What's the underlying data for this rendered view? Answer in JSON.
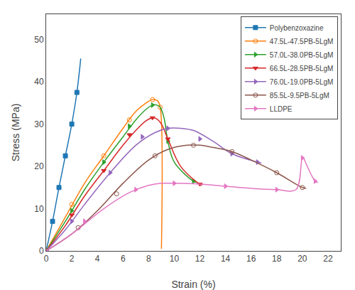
{
  "chart_data": {
    "type": "line",
    "xlabel": "Strain (%)",
    "ylabel": "Stress (MPa)",
    "xlim": [
      0,
      23
    ],
    "ylim": [
      0,
      56
    ],
    "xticks": [
      0,
      2,
      4,
      6,
      8,
      10,
      12,
      14,
      16,
      18,
      20,
      22
    ],
    "yticks": [
      0,
      10,
      20,
      30,
      40,
      50
    ],
    "grid": false,
    "legend": "upper right",
    "series": [
      {
        "name": "Polybenzoxazine",
        "marker": "square",
        "line_style": "solid",
        "x": [
          0,
          0.5,
          1.0,
          1.5,
          2.0,
          2.4,
          2.7
        ],
        "values": [
          0,
          7.0,
          15.0,
          22.5,
          30.0,
          37.5,
          45.5
        ],
        "marker_x": [
          0,
          0.5,
          1.0,
          1.5,
          2.0,
          2.4
        ],
        "marker_values": [
          0,
          7.0,
          15.0,
          22.5,
          30.0,
          37.5
        ]
      },
      {
        "name": "47.5L-47.5PB-5LgM",
        "marker": "circle-open",
        "line_style": "solid",
        "x": [
          0,
          1.5,
          3.0,
          4.5,
          6.0,
          7.0,
          7.8,
          8.3,
          8.7,
          8.9,
          9.0
        ],
        "values": [
          0,
          8.0,
          16.0,
          22.5,
          29.0,
          33.0,
          35.0,
          35.8,
          35.5,
          34.0,
          0.5
        ],
        "marker_x": [
          0,
          2.0,
          4.5,
          6.5,
          8.3,
          8.9
        ],
        "marker_values": [
          0,
          11.0,
          22.5,
          31.0,
          35.8,
          34.0
        ]
      },
      {
        "name": "57.0L-38.0PB-5LgM",
        "marker": "triangle-right",
        "line_style": "solid",
        "x": [
          0,
          1.5,
          3.0,
          4.5,
          6.0,
          7.0,
          7.8,
          8.3,
          8.65,
          8.9,
          9.2,
          9.5,
          10.0,
          11.5,
          11.8
        ],
        "values": [
          0,
          7.0,
          14.5,
          21.0,
          27.0,
          31.0,
          33.5,
          34.5,
          34.5,
          34.0,
          31.5,
          26.0,
          21.0,
          16.5,
          16.2
        ],
        "marker_x": [
          0,
          2.0,
          4.5,
          6.5,
          8.3,
          9.5,
          11.5
        ],
        "marker_values": [
          0,
          9.5,
          21.0,
          29.5,
          34.5,
          26.0,
          16.5
        ]
      },
      {
        "name": "66.5L-28.5PB-5LgM",
        "marker": "triangle-down",
        "line_style": "solid",
        "x": [
          0,
          1.5,
          3.0,
          4.5,
          6.0,
          7.0,
          7.8,
          8.3,
          8.6,
          9.0,
          9.5,
          10.5,
          12.0,
          12.2
        ],
        "values": [
          0,
          6.0,
          13.0,
          19.0,
          25.0,
          28.5,
          30.8,
          31.5,
          31.3,
          30.0,
          26.5,
          20.0,
          15.8,
          15.6
        ],
        "marker_x": [
          0,
          2.0,
          4.5,
          6.5,
          8.3,
          9.5,
          12.0
        ],
        "marker_values": [
          0,
          8.5,
          19.0,
          27.5,
          31.5,
          26.5,
          15.8
        ]
      },
      {
        "name": "76.0L-19.0PB-5LgM",
        "marker": "triangle-right",
        "line_style": "solid",
        "x": [
          0,
          1.5,
          3.0,
          5.0,
          7.0,
          8.5,
          9.5,
          10.5,
          11.5,
          13.0,
          14.5,
          16.5,
          16.8
        ],
        "values": [
          0,
          5.0,
          11.0,
          18.5,
          25.0,
          28.0,
          29.0,
          29.0,
          28.5,
          26.0,
          23.0,
          21.0,
          20.8
        ],
        "marker_x": [
          0,
          2.0,
          5.0,
          7.5,
          9.5,
          12.0,
          14.5,
          16.5
        ],
        "marker_values": [
          0,
          7.0,
          18.5,
          27.0,
          29.0,
          26.5,
          23.0,
          21.0
        ]
      },
      {
        "name": "85.5L-9.5PB-5LgM",
        "marker": "circle-open",
        "line_style": "solid",
        "x": [
          0,
          2.0,
          4.0,
          6.0,
          8.0,
          9.5,
          11.0,
          12.0,
          13.0,
          14.5,
          16.0,
          18.0,
          20.0,
          20.3
        ],
        "values": [
          0,
          4.0,
          9.5,
          16.0,
          21.5,
          24.0,
          25.0,
          25.0,
          24.5,
          23.5,
          21.5,
          18.5,
          15.0,
          14.8
        ],
        "marker_x": [
          0,
          2.5,
          5.5,
          8.5,
          11.5,
          14.5,
          18.0,
          20.0
        ],
        "marker_values": [
          0,
          5.5,
          13.5,
          22.5,
          25.0,
          23.5,
          18.5,
          15.0
        ]
      },
      {
        "name": "LLDPE",
        "marker": "triangle-right",
        "line_style": "solid",
        "x": [
          0,
          2.0,
          4.5,
          6.5,
          8.0,
          9.0,
          10.0,
          12.0,
          14.0,
          16.0,
          18.0,
          19.5,
          20.0,
          20.1,
          null,
          20.1,
          21.0,
          21.2
        ],
        "values": [
          0,
          4.0,
          10.0,
          13.8,
          15.5,
          16.0,
          16.0,
          15.8,
          15.3,
          14.8,
          14.5,
          14.5,
          22.0,
          22.0,
          null,
          22.0,
          16.5,
          16.2
        ],
        "marker_x": [
          0,
          3.0,
          7.0,
          10.0,
          14.0,
          18.0,
          20.0,
          21.0
        ],
        "marker_values": [
          0,
          7.0,
          14.5,
          16.0,
          15.3,
          14.5,
          22.0,
          16.5
        ]
      }
    ]
  }
}
